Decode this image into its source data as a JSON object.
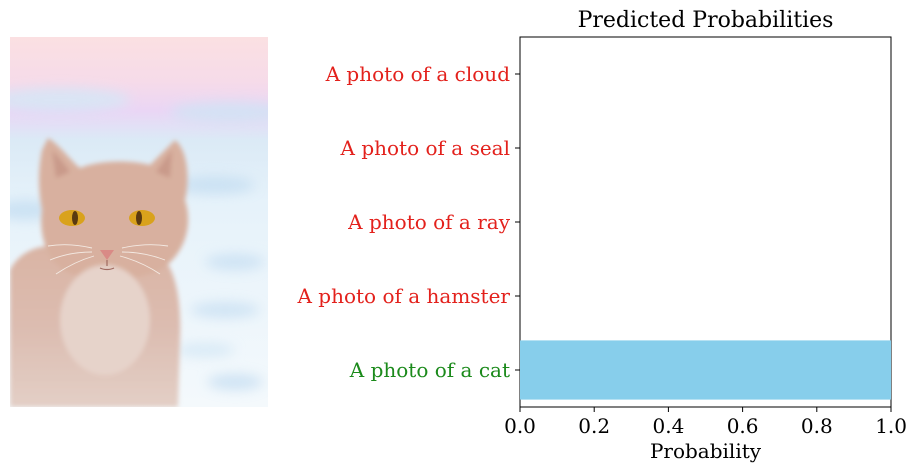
{
  "image": {
    "subject": "cat-painting"
  },
  "chart_data": {
    "type": "bar",
    "orientation": "horizontal",
    "title": "Predicted Probabilities",
    "xlabel": "Probability",
    "ylabel": "",
    "xlim": [
      0,
      1
    ],
    "xticks": [
      0.0,
      0.2,
      0.4,
      0.6,
      0.8,
      1.0
    ],
    "xtick_labels": [
      "0.0",
      "0.2",
      "0.4",
      "0.6",
      "0.8",
      "1.0"
    ],
    "categories": [
      "A photo of a cloud",
      "A photo of a seal",
      "A photo of a ray",
      "A photo of a hamster",
      "A photo of a cat"
    ],
    "values": [
      0.0,
      0.0,
      0.0,
      0.0,
      1.0
    ],
    "label_colors": [
      "#e3211c",
      "#e3211c",
      "#e3211c",
      "#e3211c",
      "#1b8a1b"
    ],
    "bar_color": "#87ceeb",
    "grid": false
  }
}
